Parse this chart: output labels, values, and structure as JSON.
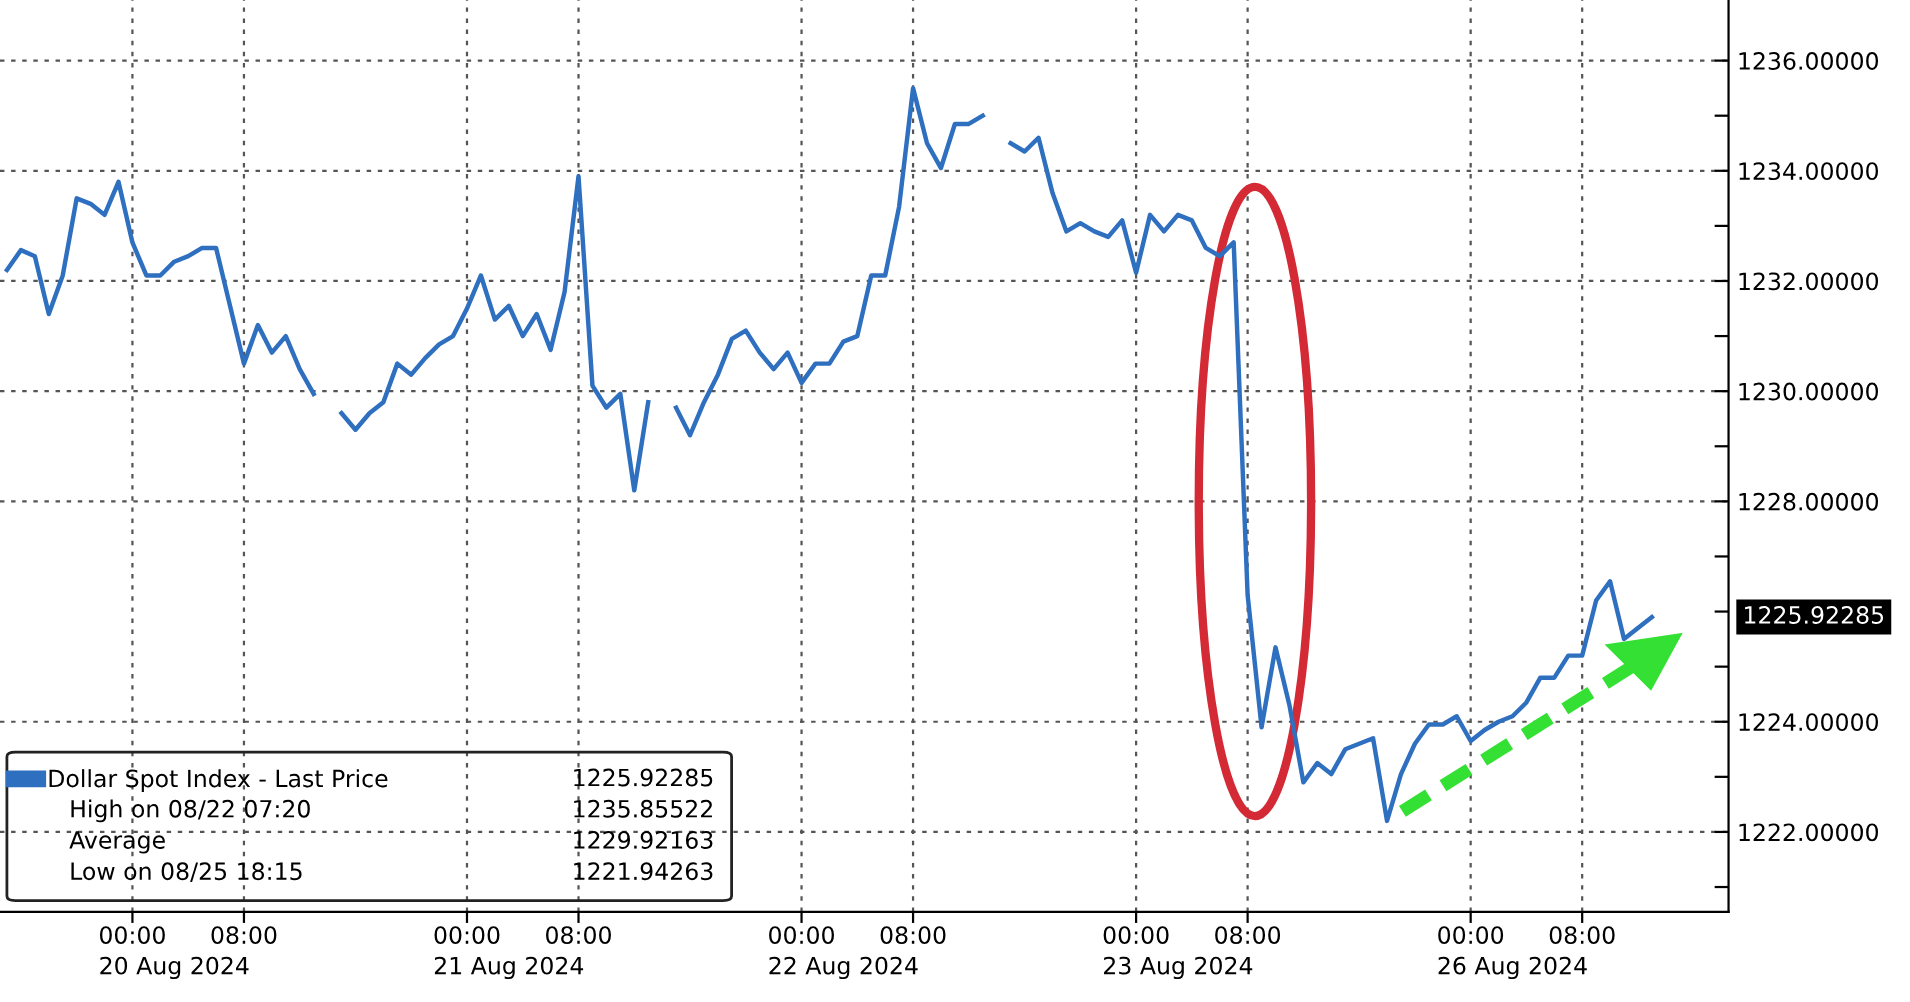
{
  "chart_data": {
    "type": "line",
    "categories": [
      null,
      null,
      null,
      null,
      null,
      null,
      null,
      null,
      null,
      "00:00",
      null,
      null,
      "20 Aug 2024",
      null,
      null,
      null,
      null,
      "08:00",
      null,
      null,
      null,
      null,
      null,
      null,
      null,
      null,
      null,
      null,
      null,
      null,
      null,
      null,
      null,
      "00:00",
      null,
      null,
      "21 Aug 2024",
      null,
      null,
      null,
      null,
      "08:00",
      null,
      null,
      null,
      null,
      null,
      null,
      null,
      null,
      null,
      null,
      null,
      null,
      null,
      null,
      null,
      "00:00",
      null,
      null,
      "22 Aug 2024",
      null,
      null,
      null,
      null,
      "08:00",
      null,
      null,
      null,
      null,
      null,
      null,
      null,
      null,
      null,
      null,
      null,
      null,
      null,
      null,
      null,
      "00:00",
      null,
      null,
      "23 Aug 2024",
      null,
      null,
      null,
      null,
      "08:00",
      null,
      null,
      null,
      null,
      null,
      null,
      null,
      null,
      null,
      null,
      null,
      null,
      null,
      null,
      null,
      "00:00",
      null,
      null,
      "26 Aug 2024",
      null,
      null,
      null,
      null,
      "08:00",
      null,
      null,
      null,
      null,
      null,
      null,
      null,
      null,
      null,
      null
    ],
    "series": [
      {
        "name": "Dollar Spot Index - Last Price",
        "color": "#2f6fbf",
        "values": [
          1232.2,
          1232.56,
          1232.45,
          1231.4,
          1232.1,
          1233.5,
          1233.4,
          1233.2,
          1233.8,
          1232.7,
          1232.1,
          1232.1,
          1232.35,
          1232.45,
          1232.6,
          1232.6,
          1231.55,
          1230.5,
          1231.2,
          1230.7,
          1231.0,
          1230.4,
          1229.95,
          null,
          1229.6,
          1229.3,
          1229.6,
          1229.8,
          1230.5,
          1230.3,
          1230.6,
          1230.85,
          1231.0,
          1231.5,
          1232.1,
          1231.3,
          1231.55,
          1231.0,
          1231.4,
          1230.75,
          1231.8,
          1233.9,
          1230.1,
          1229.7,
          1229.95,
          1228.2,
          1229.8,
          null,
          1229.7,
          1229.2,
          1229.8,
          1230.3,
          1230.95,
          1231.1,
          1230.7,
          1230.4,
          1230.7,
          1230.15,
          1230.5,
          1230.5,
          1230.9,
          1231.0,
          1232.1,
          1232.1,
          1233.35,
          1235.5,
          1234.5,
          1234.05,
          1234.85,
          1234.85,
          1235.0,
          null,
          1234.5,
          1234.35,
          1234.6,
          1233.6,
          1232.9,
          1233.05,
          1232.9,
          1232.8,
          1233.1,
          1232.15,
          1233.2,
          1232.9,
          1233.2,
          1233.1,
          1232.6,
          1232.45,
          1232.7,
          1226.3,
          1223.9,
          1225.35,
          1224.3,
          1222.9,
          1223.25,
          1223.05,
          1223.5,
          1223.6,
          1223.7,
          1222.2,
          1223.05,
          1223.6,
          1223.95,
          1223.95,
          1224.1,
          1223.65,
          1223.85,
          1224.0,
          1224.1,
          1224.35,
          1224.8,
          1224.8,
          1225.2,
          1225.2,
          1226.2,
          1226.55,
          1225.5,
          1225.7,
          1225.9,
          null,
          null,
          null,
          null,
          null
        ]
      }
    ],
    "ylim": [
      1220.55,
      1237.1
    ],
    "yticks": [
      {
        "value": 1221,
        "label": null
      },
      {
        "value": 1222,
        "label": "1222.00000"
      },
      {
        "value": 1223,
        "label": null
      },
      {
        "value": 1224,
        "label": "1224.00000"
      },
      {
        "value": 1225,
        "label": null
      },
      {
        "value": 1226,
        "label": null
      },
      {
        "value": 1227,
        "label": null
      },
      {
        "value": 1228,
        "label": "1228.00000"
      },
      {
        "value": 1229,
        "label": null
      },
      {
        "value": 1230,
        "label": "1230.00000"
      },
      {
        "value": 1231,
        "label": null
      },
      {
        "value": 1232,
        "label": "1232.00000"
      },
      {
        "value": 1233,
        "label": null
      },
      {
        "value": 1234,
        "label": "1234.00000"
      },
      {
        "value": 1235,
        "label": null
      },
      {
        "value": 1236,
        "label": "1236.00000"
      }
    ],
    "grid": true,
    "legend": "bottom left",
    "marker": "none",
    "line_style": "solid",
    "annotations": [
      "1225.92285",
      "1225.92285",
      "High on 08/22 07:20",
      "1235.85522",
      "Average",
      "1229.92163",
      "Low on 08/25 18:15",
      "1221.94263"
    ]
  }
}
